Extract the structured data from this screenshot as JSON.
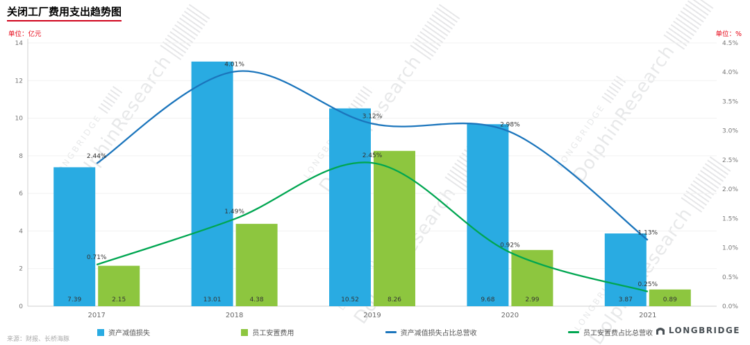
{
  "title": "关闭工厂费用支出趋势图",
  "left_unit": "单位：亿元",
  "right_unit": "单位：%",
  "source": "来源：财报、长桥海豚",
  "brand": "LONGBRIDGE",
  "watermark": {
    "line1": "LONGBRIDGE",
    "line2": "DolphinResearch"
  },
  "chart_data": {
    "type": "bar+line",
    "categories": [
      "2017",
      "2018",
      "2019",
      "2020",
      "2021"
    ],
    "bar_series": [
      {
        "name": "资产减值损失",
        "color": "#29abe2",
        "values": [
          7.39,
          13.01,
          10.52,
          9.68,
          3.87
        ]
      },
      {
        "name": "员工安置费用",
        "color": "#8dc63f",
        "values": [
          2.15,
          4.38,
          8.26,
          2.99,
          0.89
        ]
      }
    ],
    "line_series": [
      {
        "name": "资产减值损失占比总营收",
        "color": "#1b75bc",
        "values": [
          2.44,
          4.01,
          3.12,
          2.98,
          1.13
        ]
      },
      {
        "name": "员工安置费占比总营收",
        "color": "#00a651",
        "values": [
          0.71,
          1.49,
          2.45,
          0.92,
          0.25
        ]
      }
    ],
    "left_axis": {
      "min": 0,
      "max": 14,
      "step": 2
    },
    "right_axis": {
      "min": 0,
      "max": 4.5,
      "step": 0.5
    },
    "grid": "horizontal-light",
    "legend_position": "bottom"
  }
}
